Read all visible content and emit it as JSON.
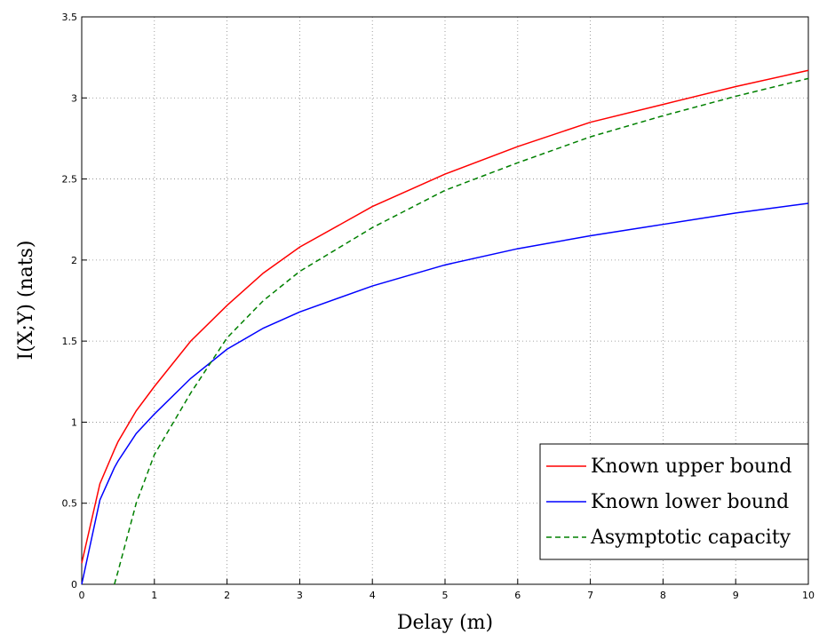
{
  "chart_data": {
    "type": "line",
    "x_label": "Delay (m)",
    "y_label": "I(X;Y) (nats)",
    "x": [
      0,
      0.25,
      0.45,
      0.5,
      0.75,
      1,
      1.5,
      2,
      2.5,
      3,
      4,
      5,
      6,
      7,
      8,
      9,
      10
    ],
    "series": [
      {
        "name": "Known upper bound",
        "color": "#ff0000",
        "dashed": false,
        "values": [
          0.13,
          0.62,
          0.83,
          0.88,
          1.07,
          1.22,
          1.5,
          1.72,
          1.92,
          2.08,
          2.33,
          2.53,
          2.7,
          2.85,
          2.96,
          3.07,
          3.17
        ]
      },
      {
        "name": "Known lower bound",
        "color": "#0000ff",
        "dashed": false,
        "values": [
          0,
          0.52,
          0.72,
          0.76,
          0.93,
          1.05,
          1.27,
          1.45,
          1.58,
          1.68,
          1.84,
          1.97,
          2.07,
          2.15,
          2.22,
          2.29,
          2.35
        ]
      },
      {
        "name": "Asymptotic capacity",
        "color": "#008000",
        "dashed": true,
        "values": [
          null,
          null,
          0,
          0.08,
          0.5,
          0.8,
          1.18,
          1.52,
          1.75,
          1.93,
          2.2,
          2.43,
          2.6,
          2.76,
          2.89,
          3.01,
          3.12
        ]
      }
    ],
    "xlim": [
      0,
      10
    ],
    "xticks": [
      0,
      1,
      2,
      3,
      4,
      5,
      6,
      7,
      8,
      9,
      10
    ],
    "ylim": [
      0,
      3.5
    ],
    "yticks": [
      0,
      0.5,
      1,
      1.5,
      2,
      2.5,
      3,
      3.5
    ],
    "grid": true,
    "legend": "lower right"
  }
}
